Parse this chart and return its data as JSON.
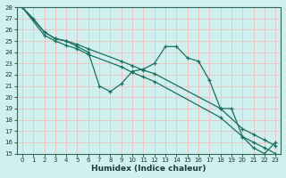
{
  "xlabel": "Humidex (Indice chaleur)",
  "xlim": [
    -0.5,
    23.5
  ],
  "ylim": [
    15,
    28
  ],
  "xticks": [
    0,
    1,
    2,
    3,
    4,
    5,
    6,
    7,
    8,
    9,
    10,
    11,
    12,
    13,
    14,
    15,
    16,
    17,
    18,
    19,
    20,
    21,
    22,
    23
  ],
  "yticks": [
    15,
    16,
    17,
    18,
    19,
    20,
    21,
    22,
    23,
    24,
    25,
    26,
    27,
    28
  ],
  "bg_color": "#cff0ee",
  "grid_color": "#f0c0c0",
  "line_color": "#1a7060",
  "lines": [
    {
      "x": [
        0,
        1,
        2,
        3,
        4,
        5,
        6,
        7,
        8,
        9,
        10,
        11,
        12,
        13,
        14,
        15,
        16,
        17,
        18,
        19,
        20,
        21,
        22,
        23
      ],
      "y": [
        28,
        27,
        25.8,
        25.2,
        25.0,
        24.5,
        24.0,
        21.0,
        20.5,
        21.2,
        22.3,
        22.5,
        23.0,
        24.5,
        24.5,
        23.5,
        23.2,
        21.5,
        19.0,
        19.0,
        16.5,
        15.5,
        15.0,
        16.0
      ]
    },
    {
      "x": [
        0,
        2,
        3,
        4,
        5,
        6,
        9,
        10,
        11,
        12,
        18,
        20,
        21,
        22,
        23
      ],
      "y": [
        28,
        25.8,
        25.2,
        25.0,
        24.7,
        24.3,
        23.2,
        22.8,
        22.4,
        22.1,
        19.0,
        17.2,
        16.7,
        16.2,
        15.7
      ]
    },
    {
      "x": [
        0,
        2,
        3,
        4,
        5,
        6,
        9,
        10,
        11,
        12,
        18,
        20,
        21,
        22,
        23
      ],
      "y": [
        28,
        25.5,
        25.0,
        24.6,
        24.3,
        23.8,
        22.7,
        22.2,
        21.8,
        21.4,
        18.2,
        16.5,
        16.0,
        15.5,
        15.0
      ]
    }
  ]
}
